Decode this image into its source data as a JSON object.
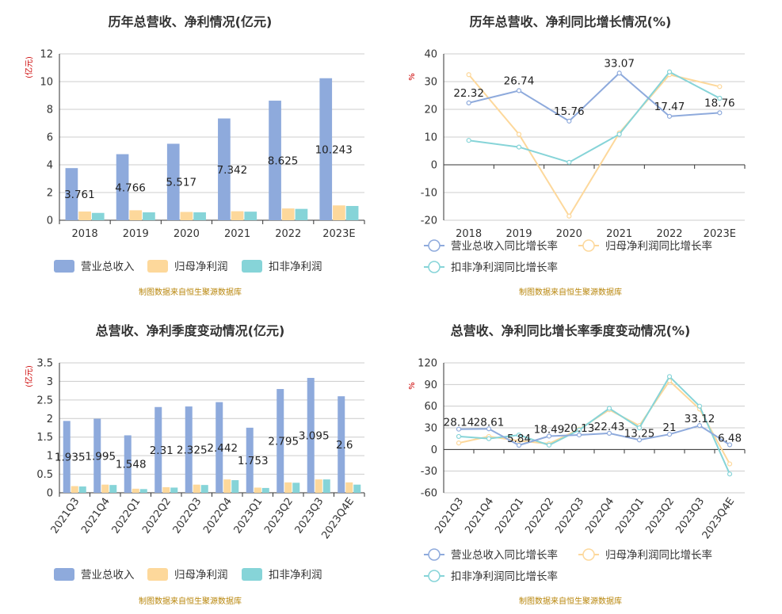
{
  "colors": {
    "revenue": "#8eaadc",
    "parent_profit": "#fdd89b",
    "deducted_profit": "#86d4d8",
    "axis": "#333333",
    "grid": "#cccccc"
  },
  "source_note": "制图数据来自恒生聚源数据库",
  "chart_data": [
    {
      "type": "bar",
      "title": "历年总营收、净利情况(亿元)",
      "ylabel": "(亿元)",
      "categories": [
        "2018",
        "2019",
        "2020",
        "2021",
        "2022",
        "2023E"
      ],
      "ylim": [
        0,
        12
      ],
      "yticks": [
        0,
        2,
        4,
        6,
        8,
        10,
        12
      ],
      "series": [
        {
          "name": "营业总收入",
          "values": [
            3.761,
            4.766,
            5.517,
            7.342,
            8.625,
            10.243
          ],
          "labels": [
            "3.761",
            "4.766",
            "5.517",
            "7.342",
            "8.625",
            "10.243"
          ]
        },
        {
          "name": "归母净利润",
          "values": [
            0.63,
            0.72,
            0.6,
            0.65,
            0.85,
            1.07
          ]
        },
        {
          "name": "扣非净利润",
          "values": [
            0.53,
            0.57,
            0.57,
            0.62,
            0.82,
            1.03
          ]
        }
      ],
      "legend_position": "bottom"
    },
    {
      "type": "line",
      "title": "历年总营收、净利同比增长情况(%)",
      "ylabel": "%",
      "categories": [
        "2018",
        "2019",
        "2020",
        "2021",
        "2022",
        "2023E"
      ],
      "ylim": [
        -20,
        40
      ],
      "yticks": [
        -20,
        -10,
        0,
        10,
        20,
        30,
        40
      ],
      "series": [
        {
          "name": "营业总收入同比增长率",
          "values": [
            22.32,
            26.74,
            15.76,
            33.07,
            17.47,
            18.76
          ],
          "labels": [
            "22.32",
            "26.74",
            "15.76",
            "33.07",
            "17.47",
            "18.76"
          ]
        },
        {
          "name": "归母净利润同比增长率",
          "values": [
            32.5,
            11.0,
            -18.5,
            11.5,
            32.5,
            28.2
          ]
        },
        {
          "name": "扣非净利润同比增长率",
          "values": [
            8.8,
            6.4,
            0.9,
            11.0,
            33.5,
            24.0
          ]
        }
      ],
      "legend_position": "bottom"
    },
    {
      "type": "bar",
      "title": "总营收、净利季度变动情况(亿元)",
      "ylabel": "(亿元)",
      "categories": [
        "2021Q3",
        "2021Q4",
        "2022Q1",
        "2022Q2",
        "2022Q3",
        "2022Q4",
        "2023Q1",
        "2023Q2",
        "2023Q3",
        "2023Q4E"
      ],
      "ylim": [
        0,
        3.5
      ],
      "yticks": [
        0,
        0.5,
        1,
        1.5,
        2,
        2.5,
        3,
        3.5
      ],
      "series": [
        {
          "name": "营业总收入",
          "values": [
            1.935,
            1.995,
            1.548,
            2.31,
            2.325,
            2.442,
            1.753,
            2.795,
            3.095,
            2.6
          ],
          "labels": [
            "1.935",
            "1.995",
            "1.548",
            "2.31",
            "2.325",
            "2.442",
            "1.753",
            "2.795",
            "3.095",
            "2.6"
          ]
        },
        {
          "name": "归母净利润",
          "values": [
            0.18,
            0.22,
            0.11,
            0.15,
            0.22,
            0.36,
            0.14,
            0.28,
            0.36,
            0.28
          ]
        },
        {
          "name": "扣非净利润",
          "values": [
            0.17,
            0.21,
            0.1,
            0.14,
            0.21,
            0.34,
            0.13,
            0.27,
            0.36,
            0.22
          ]
        }
      ],
      "legend_position": "bottom"
    },
    {
      "type": "line",
      "title": "总营收、净利同比增长率季度变动情况(%)",
      "ylabel": "%",
      "categories": [
        "2021Q3",
        "2021Q4",
        "2022Q1",
        "2022Q2",
        "2022Q3",
        "2022Q4",
        "2023Q1",
        "2023Q2",
        "2023Q3",
        "2023Q4E"
      ],
      "ylim": [
        -60,
        120
      ],
      "yticks": [
        -60,
        -30,
        0,
        30,
        60,
        90,
        120
      ],
      "series": [
        {
          "name": "营业总收入同比增长率",
          "values": [
            28.14,
            28.61,
            5.84,
            18.49,
            20.13,
            22.43,
            13.25,
            21,
            33.12,
            6.48
          ],
          "labels": [
            "28.14",
            "28.61",
            "5.84",
            "18.49",
            "20.13",
            "22.43",
            "13.25",
            "21",
            "33.12",
            "6.48"
          ]
        },
        {
          "name": "归母净利润同比增长率",
          "values": [
            9,
            18,
            12,
            8,
            28,
            55,
            33,
            95,
            56,
            -20
          ]
        },
        {
          "name": "扣非净利润同比增长率",
          "values": [
            18,
            15,
            20,
            6,
            27,
            57,
            30,
            101,
            60,
            -34
          ]
        }
      ],
      "legend_position": "bottom"
    }
  ]
}
